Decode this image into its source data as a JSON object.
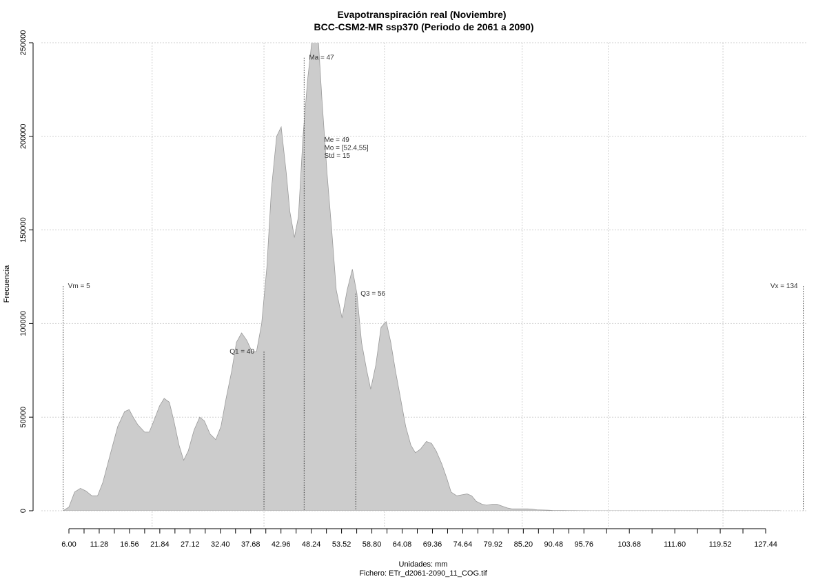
{
  "chart_data": {
    "type": "area",
    "title": "Evapotranspiración real (Noviembre)",
    "subtitle": "BCC-CSM2-MR ssp370 (Periodo de 2061 a 2090)",
    "xlabel": "Unidades: mm",
    "ylabel": "Frecuencia",
    "caption": "Fichero: ETr_d2061-2090_11_COG.tif",
    "xlim": [
      6.0,
      130.0
    ],
    "ylim": [
      0,
      250000
    ],
    "grid": true,
    "fill_color": "#cccccc",
    "outline_color": "#9a9a9a",
    "y_ticks": [
      "0",
      "50000",
      "100000",
      "150000",
      "200000",
      "250000"
    ],
    "y_tick_values": [
      0,
      50000,
      100000,
      150000,
      200000,
      250000
    ],
    "x_tick_labels": [
      "6.00",
      "11.28",
      "16.56",
      "21.84",
      "27.12",
      "32.40",
      "37.68",
      "42.96",
      "48.24",
      "53.52",
      "58.80",
      "64.08",
      "69.36",
      "74.64",
      "79.92",
      "85.20",
      "90.48",
      "95.76",
      "103.68",
      "111.60",
      "119.52",
      "127.44"
    ],
    "x_tick_values": [
      6.0,
      11.28,
      16.56,
      21.84,
      27.12,
      32.4,
      37.68,
      42.96,
      48.24,
      53.52,
      58.8,
      64.08,
      69.36,
      74.64,
      79.92,
      85.2,
      90.48,
      95.76,
      103.68,
      111.6,
      119.52,
      127.44
    ],
    "x_grid_values": [
      20.5,
      40.0,
      61.0,
      85.0,
      100.0,
      120.0
    ],
    "density": {
      "x": [
        5.0,
        6.0,
        7.0,
        8.0,
        9.0,
        10.0,
        11.0,
        11.9,
        13.2,
        14.5,
        15.7,
        16.5,
        17.2,
        18.0,
        19.2,
        20.0,
        20.8,
        21.8,
        22.6,
        23.5,
        24.3,
        25.2,
        26.0,
        26.8,
        27.8,
        28.8,
        29.6,
        30.6,
        31.6,
        32.5,
        33.4,
        34.4,
        35.2,
        36.1,
        37.0,
        37.9,
        38.7,
        39.6,
        40.5,
        41.3,
        42.2,
        43.0,
        43.9,
        44.5,
        45.3,
        46.0,
        46.8,
        47.6,
        48.5,
        49.4,
        50.1,
        51.0,
        51.8,
        52.6,
        53.6,
        54.5,
        55.4,
        56.2,
        57.0,
        57.9,
        58.6,
        59.5,
        60.4,
        61.3,
        62.1,
        62.9,
        63.8,
        64.7,
        65.6,
        66.4,
        67.3,
        68.3,
        69.2,
        70.0,
        71.0,
        71.9,
        72.6,
        73.6,
        74.5,
        75.4,
        76.2,
        77.0,
        78.0,
        78.8,
        79.8,
        80.6,
        81.5,
        82.4,
        83.2,
        84.2,
        85.0,
        86.0,
        86.8,
        87.6,
        88.6,
        89.5,
        90.3,
        91.2,
        92.2,
        93.0,
        94.0,
        95.0,
        95.8,
        97.0,
        98.0,
        100.0,
        105.0,
        110.0,
        115.0,
        120.0,
        125.0,
        130.0
      ],
      "y": [
        0,
        2000,
        10000,
        12000,
        10500,
        8000,
        8000,
        15000,
        30000,
        45000,
        53000,
        54000,
        50000,
        46000,
        42000,
        42000,
        48000,
        56000,
        60000,
        58000,
        48000,
        35000,
        27000,
        32000,
        43000,
        50000,
        48000,
        41000,
        38000,
        45000,
        60000,
        75000,
        90000,
        95000,
        91000,
        85000,
        85000,
        100000,
        130000,
        172000,
        200000,
        205000,
        180000,
        160000,
        146000,
        157000,
        200000,
        230000,
        255000,
        255000,
        220000,
        180000,
        150000,
        118000,
        103000,
        118000,
        129000,
        116000,
        90000,
        75000,
        65000,
        78000,
        98000,
        101000,
        90000,
        75000,
        60000,
        45000,
        35000,
        31000,
        33000,
        37000,
        36000,
        32000,
        25000,
        17000,
        10000,
        8000,
        8500,
        9000,
        8000,
        5000,
        3500,
        3000,
        3500,
        3500,
        2500,
        1500,
        1000,
        1000,
        1000,
        1000,
        800,
        500,
        400,
        300,
        200,
        150,
        100,
        80,
        60,
        40,
        20,
        10,
        0,
        0,
        0,
        0,
        0,
        0,
        0,
        0
      ]
    },
    "annotations": [
      {
        "name": "vm",
        "label": "Vm = 5",
        "x": 5.0,
        "y_top": 120000,
        "line_top": 120000,
        "line": true
      },
      {
        "name": "q1",
        "label": "Q1 = 40",
        "x": 40.0,
        "y_top": 85000,
        "line_top": 85000,
        "line": true
      },
      {
        "name": "ma",
        "label": "Ma = 47",
        "x": 47.0,
        "y_top": 242000,
        "line_top": 242000,
        "line": true
      },
      {
        "name": "q3",
        "label": "Q3 = 56",
        "x": 56.0,
        "y_top": 116000,
        "line_top": 116000,
        "line": true
      },
      {
        "name": "vx",
        "label": "Vx = 134",
        "x": 134.0,
        "y_top": 120000,
        "line_top": 120000,
        "line": true
      }
    ],
    "stats_block": {
      "x": 50.5,
      "y": 197000,
      "lines": [
        "Me = 49",
        "Mo = [52.4,55]",
        "Std = 15"
      ]
    }
  }
}
